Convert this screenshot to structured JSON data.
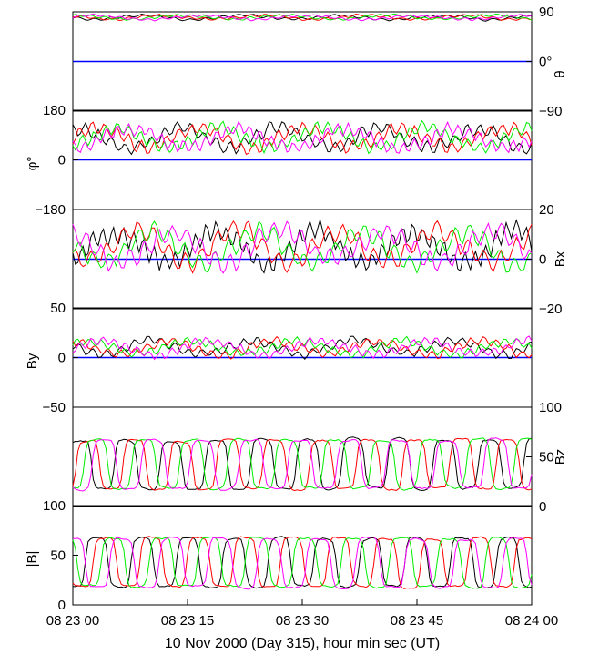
{
  "chart_data": {
    "type": "line",
    "title": "",
    "xlabel": "10 Nov 2000 (Day 315), hour min sec (UT)",
    "x_ticks": [
      "08 23 00",
      "08 23 15",
      "08 23 30",
      "08 23 45",
      "08 24 00"
    ],
    "x_range_seconds": [
      0,
      60
    ],
    "colors": {
      "black": "#000000",
      "red": "#ff0000",
      "green": "#00ee00",
      "magenta": "#ff00ff",
      "zero_line": "#0000ff"
    },
    "panels": [
      {
        "key": "theta",
        "label_right": "θ",
        "axis_side": "right",
        "ylim": [
          -90,
          90
        ],
        "ticks": [
          {
            "v": 90,
            "t": "90"
          },
          {
            "v": 0,
            "t": "0°"
          },
          {
            "v": -90,
            "t": "−90"
          }
        ],
        "zero_line": true,
        "approx_level": 80,
        "approx_range": [
          72,
          88
        ]
      },
      {
        "key": "phi",
        "label_left": "φ°",
        "axis_side": "left",
        "ylim": [
          -180,
          180
        ],
        "ticks": [
          {
            "v": 180,
            "t": "180"
          },
          {
            "v": 0,
            "t": "0"
          },
          {
            "v": -180,
            "t": "−180"
          }
        ],
        "zero_line": true,
        "approx_level": 80,
        "approx_range": [
          20,
          180
        ]
      },
      {
        "key": "Bx",
        "label_right": "Bx",
        "axis_side": "right",
        "ylim": [
          -20,
          20
        ],
        "ticks": [
          {
            "v": 20,
            "t": "20"
          },
          {
            "v": 0,
            "t": "0"
          },
          {
            "v": -20,
            "t": "−20"
          }
        ],
        "zero_line": true,
        "approx_level": 5,
        "approx_range": [
          -10,
          18
        ]
      },
      {
        "key": "By",
        "label_left": "By",
        "axis_side": "left",
        "ylim": [
          -50,
          50
        ],
        "ticks": [
          {
            "v": 50,
            "t": "50"
          },
          {
            "v": 0,
            "t": "0"
          },
          {
            "v": -50,
            "t": "−50"
          }
        ],
        "zero_line": true,
        "approx_level": 10,
        "approx_range": [
          -5,
          25
        ]
      },
      {
        "key": "Bz",
        "label_right": "Bz",
        "axis_side": "right",
        "ylim": [
          0,
          100
        ],
        "ticks": [
          {
            "v": 100,
            "t": "100"
          },
          {
            "v": 50,
            "t": "50"
          },
          {
            "v": 0,
            "t": "0"
          }
        ],
        "zero_line": false,
        "approx_level": 50,
        "approx_range": [
          15,
          70
        ]
      },
      {
        "key": "B_total",
        "label_left": "|B|",
        "axis_side": "left",
        "ylim": [
          0,
          100
        ],
        "ticks": [
          {
            "v": 100,
            "t": "100"
          },
          {
            "v": 50,
            "t": "50"
          },
          {
            "v": 0,
            "t": "0"
          }
        ],
        "zero_line": false,
        "approx_level": 50,
        "approx_range": [
          15,
          70
        ]
      }
    ],
    "series_colors": [
      "black",
      "red",
      "green",
      "magenta"
    ]
  }
}
